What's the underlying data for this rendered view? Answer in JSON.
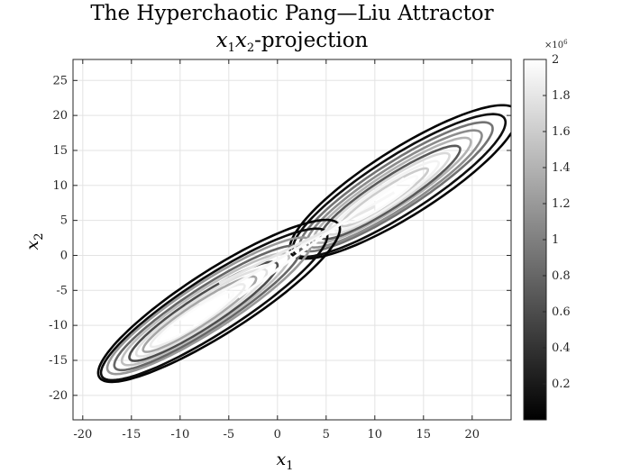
{
  "chart_data": {
    "type": "line",
    "title": "The Hyperchaotic Pang—Liu Attractor",
    "subtitle": {
      "v1": "x",
      "s1": "1",
      "v2": "x",
      "s2": "2",
      "rest": "-projection"
    },
    "xlabel": {
      "var": "x",
      "sub": "1"
    },
    "ylabel": {
      "var": "x",
      "sub": "2"
    },
    "xlim": [
      -21,
      24
    ],
    "ylim": [
      -23.5,
      28
    ],
    "xticks": [
      -20,
      -15,
      -10,
      -5,
      0,
      5,
      10,
      15,
      20
    ],
    "yticks": [
      -20,
      -15,
      -10,
      -5,
      0,
      5,
      10,
      15,
      20,
      25
    ],
    "grid": true,
    "series_description": "trajectory (x1, x2) colored by time step in grayscale",
    "colorbar": {
      "colormap": "gray",
      "range": [
        0,
        2000000
      ],
      "ticks": [
        "0.2",
        "0.4",
        "0.6",
        "0.8",
        "1",
        "1.2",
        "1.4",
        "1.6",
        "1.8",
        "2"
      ],
      "exponent_base": "×10",
      "exponent_power": "6"
    },
    "orbits_upper_wing": [
      {
        "cx": 13.0,
        "cy": 10.5,
        "a": 15.5,
        "b": 4.2,
        "t": 0.02
      },
      {
        "cx": 12.5,
        "cy": 10.0,
        "a": 14.5,
        "b": 3.6,
        "t": 0.06
      },
      {
        "cx": 12.2,
        "cy": 9.8,
        "a": 13.2,
        "b": 3.0,
        "t": 0.45
      },
      {
        "cx": 12.0,
        "cy": 9.5,
        "a": 12.0,
        "b": 2.6,
        "t": 0.55
      },
      {
        "cx": 11.8,
        "cy": 9.3,
        "a": 10.8,
        "b": 2.2,
        "t": 0.7
      },
      {
        "cx": 11.6,
        "cy": 9.0,
        "a": 9.6,
        "b": 1.9,
        "t": 0.35
      },
      {
        "cx": 11.4,
        "cy": 8.8,
        "a": 8.4,
        "b": 1.6,
        "t": 0.85
      },
      {
        "cx": 11.2,
        "cy": 8.5,
        "a": 7.2,
        "b": 1.3,
        "t": 0.95
      },
      {
        "cx": 11.0,
        "cy": 8.3,
        "a": 6.0,
        "b": 1.0,
        "t": 0.8
      },
      {
        "cx": 10.8,
        "cy": 8.0,
        "a": 4.8,
        "b": 0.8,
        "t": 0.98
      }
    ],
    "orbits_lower_wing": [
      {
        "cx": -6.0,
        "cy": -6.5,
        "a": 16.5,
        "b": 4.0,
        "t": 0.02
      },
      {
        "cx": -6.5,
        "cy": -7.0,
        "a": 15.5,
        "b": 3.5,
        "t": 0.05
      },
      {
        "cx": -7.0,
        "cy": -7.2,
        "a": 14.0,
        "b": 3.0,
        "t": 0.6
      },
      {
        "cx": -7.2,
        "cy": -7.5,
        "a": 12.8,
        "b": 2.6,
        "t": 0.4
      },
      {
        "cx": -7.4,
        "cy": -7.7,
        "a": 11.5,
        "b": 2.3,
        "t": 0.75
      },
      {
        "cx": -7.6,
        "cy": -8.0,
        "a": 10.2,
        "b": 2.0,
        "t": 0.3
      },
      {
        "cx": -7.8,
        "cy": -8.2,
        "a": 9.0,
        "b": 1.7,
        "t": 0.88
      },
      {
        "cx": -8.0,
        "cy": -8.4,
        "a": 7.8,
        "b": 1.4,
        "t": 0.65
      },
      {
        "cx": -8.2,
        "cy": -8.6,
        "a": 6.5,
        "b": 1.1,
        "t": 0.92
      },
      {
        "cx": -8.4,
        "cy": -8.8,
        "a": 5.2,
        "b": 0.9,
        "t": 0.99
      }
    ],
    "bridges": [
      {
        "x0": -8,
        "y0": -7,
        "x1": 12,
        "y1": 9,
        "t": 0.97
      },
      {
        "x0": -6,
        "y0": -4,
        "x1": 10,
        "y1": 7,
        "t": 0.9
      },
      {
        "x0": -4,
        "y0": -6,
        "x1": 13,
        "y1": 11,
        "t": 0.99
      }
    ]
  }
}
